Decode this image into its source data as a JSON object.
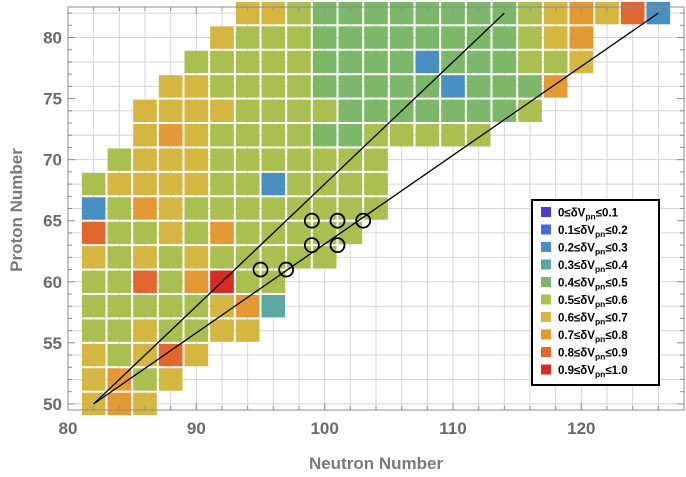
{
  "chart_data": {
    "type": "heatmap",
    "xlabel": "Neutron Number",
    "ylabel": "Proton Number",
    "xlim": [
      80,
      128
    ],
    "ylim": [
      49.5,
      82.5
    ],
    "x_ticks": [
      80,
      90,
      100,
      110,
      120
    ],
    "y_ticks": [
      50,
      55,
      60,
      65,
      70,
      75,
      80
    ],
    "grid": true,
    "legend_placement": "lower-right",
    "legend": [
      {
        "label_pre": "0≤δV",
        "label_sub": "pn",
        "label_post": "≤0.1",
        "color": "#4a3fc9"
      },
      {
        "label_pre": "0.1≤δV",
        "label_sub": "pn",
        "label_post": "≤0.2",
        "color": "#3f6fd4"
      },
      {
        "label_pre": "0.2≤δV",
        "label_sub": "pn",
        "label_post": "≤0.3",
        "color": "#4a8fc2"
      },
      {
        "label_pre": "0.3≤δV",
        "label_sub": "pn",
        "label_post": "≤0.4",
        "color": "#5aa8a0"
      },
      {
        "label_pre": "0.4≤δV",
        "label_sub": "pn",
        "label_post": "≤0.5",
        "color": "#7db86a"
      },
      {
        "label_pre": "0.5≤δV",
        "label_sub": "pn",
        "label_post": "≤0.6",
        "color": "#a9c050"
      },
      {
        "label_pre": "0.6≤δV",
        "label_sub": "pn",
        "label_post": "≤0.7",
        "color": "#d4b640"
      },
      {
        "label_pre": "0.7≤δV",
        "label_sub": "pn",
        "label_post": "≤0.8",
        "color": "#e39a35"
      },
      {
        "label_pre": "0.8≤δV",
        "label_sub": "pn",
        "label_post": "≤0.9",
        "color": "#e0662d"
      },
      {
        "label_pre": "0.9≤δV",
        "label_sub": "pn",
        "label_post": "≤1.0",
        "color": "#d42d26"
      }
    ],
    "cells": [
      [
        82,
        50,
        6
      ],
      [
        84,
        50,
        7
      ],
      [
        86,
        50,
        6
      ],
      [
        82,
        52,
        6
      ],
      [
        84,
        52,
        7
      ],
      [
        86,
        52,
        5
      ],
      [
        88,
        52,
        6
      ],
      [
        82,
        54,
        6
      ],
      [
        84,
        54,
        5
      ],
      [
        86,
        54,
        6
      ],
      [
        88,
        54,
        8
      ],
      [
        90,
        54,
        6
      ],
      [
        82,
        56,
        5
      ],
      [
        84,
        56,
        5
      ],
      [
        86,
        56,
        6
      ],
      [
        88,
        56,
        5
      ],
      [
        90,
        56,
        5
      ],
      [
        92,
        56,
        6
      ],
      [
        94,
        56,
        6
      ],
      [
        82,
        58,
        5
      ],
      [
        84,
        58,
        5
      ],
      [
        86,
        58,
        5
      ],
      [
        88,
        58,
        5
      ],
      [
        90,
        58,
        5
      ],
      [
        92,
        58,
        6
      ],
      [
        94,
        58,
        7
      ],
      [
        96,
        58,
        3
      ],
      [
        82,
        60,
        5
      ],
      [
        84,
        60,
        5
      ],
      [
        86,
        60,
        8
      ],
      [
        88,
        60,
        5
      ],
      [
        90,
        60,
        7
      ],
      [
        92,
        60,
        9
      ],
      [
        94,
        60,
        5
      ],
      [
        96,
        60,
        5
      ],
      [
        82,
        62,
        6
      ],
      [
        84,
        62,
        5
      ],
      [
        86,
        62,
        6
      ],
      [
        88,
        62,
        5
      ],
      [
        90,
        62,
        6
      ],
      [
        92,
        62,
        5
      ],
      [
        94,
        62,
        5
      ],
      [
        96,
        62,
        5
      ],
      [
        98,
        62,
        5
      ],
      [
        100,
        62,
        5
      ],
      [
        82,
        64,
        8
      ],
      [
        84,
        64,
        5
      ],
      [
        86,
        64,
        5
      ],
      [
        88,
        64,
        6
      ],
      [
        90,
        64,
        5
      ],
      [
        92,
        64,
        7
      ],
      [
        94,
        64,
        5
      ],
      [
        96,
        64,
        5
      ],
      [
        98,
        64,
        5
      ],
      [
        100,
        64,
        5
      ],
      [
        102,
        64,
        5
      ],
      [
        82,
        66,
        2
      ],
      [
        84,
        66,
        5
      ],
      [
        86,
        66,
        7
      ],
      [
        88,
        66,
        6
      ],
      [
        90,
        66,
        5
      ],
      [
        92,
        66,
        5
      ],
      [
        94,
        66,
        5
      ],
      [
        96,
        66,
        5
      ],
      [
        98,
        66,
        5
      ],
      [
        100,
        66,
        5
      ],
      [
        102,
        66,
        5
      ],
      [
        104,
        66,
        5
      ],
      [
        82,
        68,
        5
      ],
      [
        84,
        68,
        6
      ],
      [
        86,
        68,
        6
      ],
      [
        88,
        68,
        6
      ],
      [
        90,
        68,
        6
      ],
      [
        92,
        68,
        5
      ],
      [
        94,
        68,
        5
      ],
      [
        96,
        68,
        2
      ],
      [
        98,
        68,
        5
      ],
      [
        100,
        68,
        5
      ],
      [
        102,
        68,
        5
      ],
      [
        104,
        68,
        5
      ],
      [
        84,
        70,
        5
      ],
      [
        86,
        70,
        6
      ],
      [
        88,
        70,
        6
      ],
      [
        90,
        70,
        6
      ],
      [
        92,
        70,
        5
      ],
      [
        94,
        70,
        5
      ],
      [
        96,
        70,
        5
      ],
      [
        98,
        70,
        5
      ],
      [
        100,
        70,
        5
      ],
      [
        102,
        70,
        5
      ],
      [
        104,
        70,
        5
      ],
      [
        86,
        72,
        6
      ],
      [
        88,
        72,
        7
      ],
      [
        90,
        72,
        6
      ],
      [
        92,
        72,
        5
      ],
      [
        94,
        72,
        5
      ],
      [
        96,
        72,
        5
      ],
      [
        98,
        72,
        5
      ],
      [
        100,
        72,
        4
      ],
      [
        102,
        72,
        4
      ],
      [
        104,
        72,
        5
      ],
      [
        106,
        72,
        5
      ],
      [
        108,
        72,
        5
      ],
      [
        110,
        72,
        5
      ],
      [
        112,
        72,
        5
      ],
      [
        86,
        74,
        6
      ],
      [
        88,
        74,
        6
      ],
      [
        90,
        74,
        6
      ],
      [
        92,
        74,
        6
      ],
      [
        94,
        74,
        5
      ],
      [
        96,
        74,
        5
      ],
      [
        98,
        74,
        5
      ],
      [
        100,
        74,
        5
      ],
      [
        102,
        74,
        4
      ],
      [
        104,
        74,
        4
      ],
      [
        106,
        74,
        4
      ],
      [
        108,
        74,
        4
      ],
      [
        110,
        74,
        4
      ],
      [
        112,
        74,
        4
      ],
      [
        114,
        74,
        4
      ],
      [
        116,
        74,
        5
      ],
      [
        88,
        76,
        6
      ],
      [
        90,
        76,
        6
      ],
      [
        92,
        76,
        5
      ],
      [
        94,
        76,
        5
      ],
      [
        96,
        76,
        5
      ],
      [
        98,
        76,
        5
      ],
      [
        100,
        76,
        4
      ],
      [
        102,
        76,
        4
      ],
      [
        104,
        76,
        4
      ],
      [
        106,
        76,
        4
      ],
      [
        108,
        76,
        4
      ],
      [
        110,
        76,
        2
      ],
      [
        112,
        76,
        4
      ],
      [
        114,
        76,
        4
      ],
      [
        116,
        76,
        4
      ],
      [
        118,
        76,
        7
      ],
      [
        90,
        78,
        5
      ],
      [
        92,
        78,
        5
      ],
      [
        94,
        78,
        5
      ],
      [
        96,
        78,
        5
      ],
      [
        98,
        78,
        5
      ],
      [
        100,
        78,
        4
      ],
      [
        102,
        78,
        4
      ],
      [
        104,
        78,
        4
      ],
      [
        106,
        78,
        4
      ],
      [
        108,
        78,
        2
      ],
      [
        110,
        78,
        4
      ],
      [
        112,
        78,
        4
      ],
      [
        114,
        78,
        4
      ],
      [
        116,
        78,
        5
      ],
      [
        118,
        78,
        5
      ],
      [
        120,
        78,
        6
      ],
      [
        92,
        80,
        6
      ],
      [
        94,
        80,
        5
      ],
      [
        96,
        80,
        5
      ],
      [
        98,
        80,
        5
      ],
      [
        100,
        80,
        4
      ],
      [
        102,
        80,
        4
      ],
      [
        104,
        80,
        4
      ],
      [
        106,
        80,
        4
      ],
      [
        108,
        80,
        4
      ],
      [
        110,
        80,
        4
      ],
      [
        112,
        80,
        4
      ],
      [
        114,
        80,
        4
      ],
      [
        116,
        80,
        5
      ],
      [
        118,
        80,
        6
      ],
      [
        120,
        80,
        7
      ],
      [
        94,
        82,
        6
      ],
      [
        96,
        82,
        6
      ],
      [
        98,
        82,
        5
      ],
      [
        100,
        82,
        4
      ],
      [
        102,
        82,
        4
      ],
      [
        104,
        82,
        4
      ],
      [
        106,
        82,
        4
      ],
      [
        108,
        82,
        4
      ],
      [
        110,
        82,
        4
      ],
      [
        112,
        82,
        4
      ],
      [
        114,
        82,
        4
      ],
      [
        116,
        82,
        5
      ],
      [
        118,
        82,
        6
      ],
      [
        120,
        82,
        7
      ],
      [
        122,
        82,
        6
      ],
      [
        124,
        82,
        8
      ],
      [
        126,
        82,
        2
      ]
    ],
    "circles": [
      [
        95,
        61
      ],
      [
        97,
        61
      ],
      [
        99,
        63
      ],
      [
        101,
        63
      ],
      [
        99,
        65
      ],
      [
        101,
        65
      ],
      [
        103,
        65
      ]
    ],
    "lines": [
      {
        "from": [
          82,
          50
        ],
        "to": [
          114,
          82
        ]
      },
      {
        "from": [
          82,
          50
        ],
        "to": [
          126,
          82
        ]
      }
    ]
  }
}
